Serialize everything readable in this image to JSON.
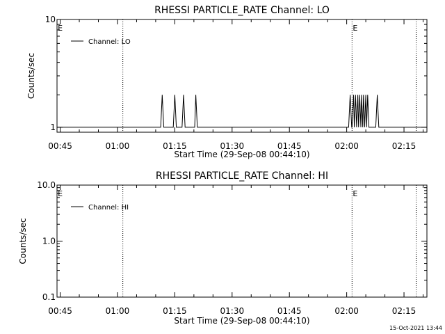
{
  "footer": {
    "timestamp": "15-Oct-2021 13:44"
  },
  "chart_data": [
    {
      "type": "line",
      "title": "RHESSI PARTICLE_RATE Channel: LO",
      "xlabel": "Start Time (29-Sep-08 00:44:10)",
      "ylabel": "Counts/sec",
      "yscale": "log",
      "ylim": [
        0.9,
        10
      ],
      "yticks": [
        {
          "v": 10,
          "label": "10"
        },
        {
          "v": 1,
          "label": "1"
        }
      ],
      "xlim_min": [
        44.17,
        141.0
      ],
      "xticks": [
        {
          "v": 45,
          "label": "00:45"
        },
        {
          "v": 60,
          "label": "01:00"
        },
        {
          "v": 75,
          "label": "01:15"
        },
        {
          "v": 90,
          "label": "01:30"
        },
        {
          "v": 105,
          "label": "01:45"
        },
        {
          "v": 120,
          "label": "02:00"
        },
        {
          "v": 135,
          "label": "02:15"
        }
      ],
      "legend": "Channel: LO",
      "legend_position": "upper-left",
      "vlines_min": [
        61.4,
        121.4,
        138.2
      ],
      "markers": [
        {
          "x": 44.2,
          "label": "E"
        },
        {
          "x": 121.4,
          "label": "E"
        }
      ],
      "series": [
        {
          "name": "Channel: LO",
          "x_min": [
            44.17,
            71.3,
            71.7,
            72.1,
            74.6,
            75.0,
            75.4,
            76.9,
            77.3,
            77.7,
            80.2,
            80.5,
            80.9,
            120.5,
            120.9,
            121.3,
            121.4,
            121.8,
            122.0,
            122.3,
            122.6,
            122.9,
            123.1,
            123.4,
            123.7,
            123.9,
            124.2,
            124.4,
            124.7,
            125.0,
            125.2,
            125.5,
            125.8,
            126.1,
            127.6,
            128.0,
            128.4,
            141.0
          ],
          "y": [
            1,
            1,
            2,
            1,
            1,
            2,
            1,
            1,
            2,
            1,
            1,
            2,
            1,
            1,
            2,
            1,
            1,
            2,
            1,
            2,
            1,
            2,
            1,
            2,
            1,
            2,
            1,
            2,
            1,
            2,
            1,
            2,
            1,
            1,
            1,
            2,
            1,
            1
          ]
        }
      ]
    },
    {
      "type": "line",
      "title": "RHESSI PARTICLE_RATE Channel: HI",
      "xlabel": "Start Time (29-Sep-08 00:44:10)",
      "ylabel": "Counts/sec",
      "yscale": "log",
      "ylim": [
        0.1,
        10
      ],
      "yticks": [
        {
          "v": 10,
          "label": "10.0"
        },
        {
          "v": 1,
          "label": "1.0"
        },
        {
          "v": 0.1,
          "label": "0.1"
        }
      ],
      "xlim_min": [
        44.17,
        141.0
      ],
      "xticks": [
        {
          "v": 45,
          "label": "00:45"
        },
        {
          "v": 60,
          "label": "01:00"
        },
        {
          "v": 75,
          "label": "01:15"
        },
        {
          "v": 90,
          "label": "01:30"
        },
        {
          "v": 105,
          "label": "01:45"
        },
        {
          "v": 120,
          "label": "02:00"
        },
        {
          "v": 135,
          "label": "02:15"
        }
      ],
      "legend": "Channel: HI",
      "legend_position": "upper-left",
      "vlines_min": [
        61.4,
        121.4,
        138.2
      ],
      "markers": [
        {
          "x": 44.2,
          "label": "E"
        },
        {
          "x": 121.4,
          "label": "E"
        }
      ],
      "series": [
        {
          "name": "Channel: HI",
          "x_min": [],
          "y": []
        }
      ]
    }
  ]
}
